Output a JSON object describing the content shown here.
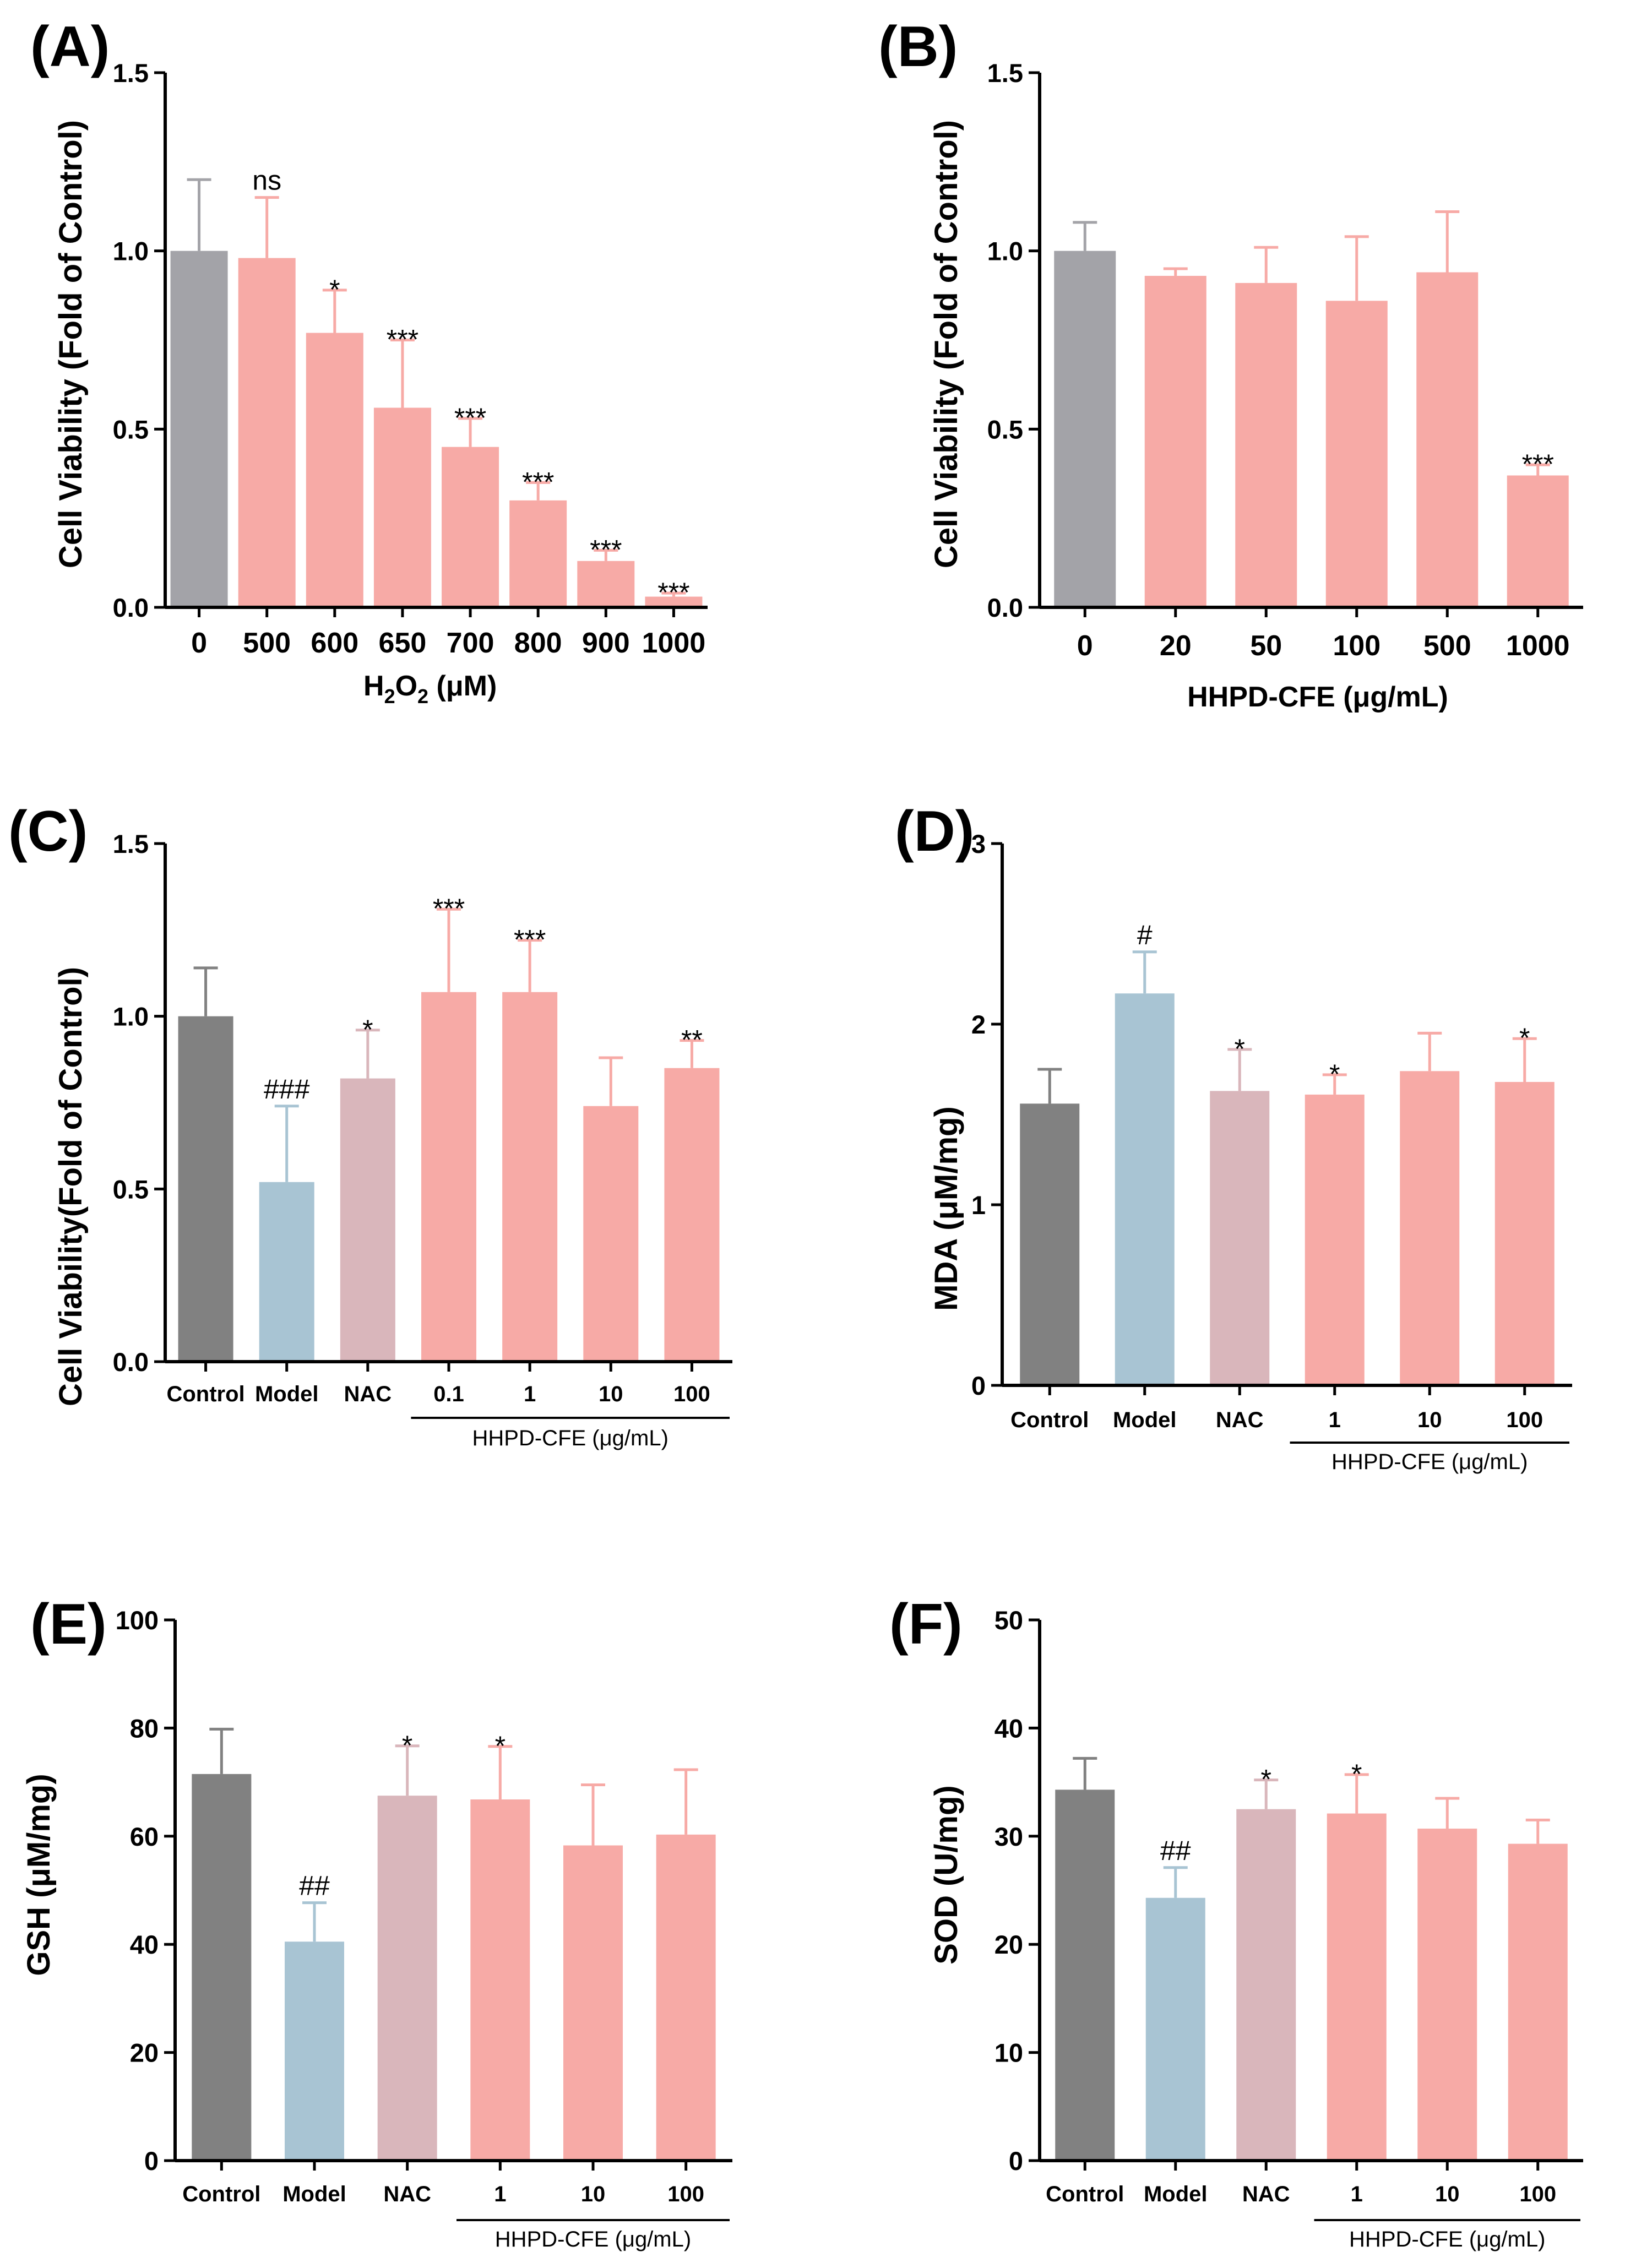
{
  "colors": {
    "gray": "#a3a3a8",
    "dark_gray": "#818181",
    "blue": "#a8c4d3",
    "mauve": "#d9b6bb",
    "pink": "#f7aaa6"
  },
  "chart_data": [
    {
      "id": "A",
      "panel_label": "(A)",
      "type": "bar",
      "ylabel": "Cell Viability (Fold of Control)",
      "xlabel_main": "H",
      "xlabel_sub": "2",
      "xlabel_main2": "O",
      "xlabel_sub2": "2",
      "xlabel_rest": " (μM)",
      "ylim": [
        0,
        1.5
      ],
      "yticks": [
        "0.0",
        "0.5",
        "1.0",
        "1.5"
      ],
      "categories": [
        "0",
        "500",
        "600",
        "650",
        "700",
        "800",
        "900",
        "1000"
      ],
      "values": [
        1.0,
        0.98,
        0.77,
        0.56,
        0.45,
        0.3,
        0.13,
        0.03
      ],
      "errors": [
        0.2,
        0.17,
        0.12,
        0.19,
        0.08,
        0.05,
        0.03,
        0.01
      ],
      "colors": [
        "gray",
        "pink",
        "pink",
        "pink",
        "pink",
        "pink",
        "pink",
        "pink"
      ],
      "annotations": [
        "",
        "ns",
        "*",
        "***",
        "***",
        "***",
        "***",
        "***"
      ]
    },
    {
      "id": "B",
      "panel_label": "(B)",
      "type": "bar",
      "ylabel": "Cell Viability (Fold of Control)",
      "xlabel": "HHPD-CFE (μg/mL)",
      "ylim": [
        0,
        1.5
      ],
      "yticks": [
        "0.0",
        "0.5",
        "1.0",
        "1.5"
      ],
      "categories": [
        "0",
        "20",
        "50",
        "100",
        "500",
        "1000"
      ],
      "values": [
        1.0,
        0.93,
        0.91,
        0.86,
        0.94,
        0.37
      ],
      "errors": [
        0.08,
        0.02,
        0.1,
        0.18,
        0.17,
        0.03
      ],
      "colors": [
        "gray",
        "pink",
        "pink",
        "pink",
        "pink",
        "pink"
      ],
      "annotations": [
        "",
        "",
        "",
        "",
        "",
        "***"
      ]
    },
    {
      "id": "C",
      "panel_label": "(C)",
      "type": "bar",
      "ylabel": "Cell Viability(Fold of Control)",
      "group_label": "HHPD-CFE (μg/mL)",
      "group_range": [
        3,
        6
      ],
      "ylim": [
        0,
        1.5
      ],
      "yticks": [
        "0.0",
        "0.5",
        "1.0",
        "1.5"
      ],
      "categories": [
        "Control",
        "Model",
        "NAC",
        "0.1",
        "1",
        "10",
        "100"
      ],
      "values": [
        1.0,
        0.52,
        0.82,
        1.07,
        1.07,
        0.74,
        0.85
      ],
      "errors": [
        0.14,
        0.22,
        0.14,
        0.24,
        0.15,
        0.14,
        0.08
      ],
      "colors": [
        "dark_gray",
        "blue",
        "mauve",
        "pink",
        "pink",
        "pink",
        "pink"
      ],
      "annotations": [
        "",
        "###",
        "*",
        "***",
        "***",
        "",
        "**"
      ]
    },
    {
      "id": "D",
      "panel_label": "(D)",
      "type": "bar",
      "ylabel": "MDA (μM/mg)",
      "group_label": "HHPD-CFE (μg/mL)",
      "group_range": [
        3,
        5
      ],
      "ylim": [
        0,
        3
      ],
      "yticks": [
        "0",
        "1",
        "2",
        "3"
      ],
      "categories": [
        "Control",
        "Model",
        "NAC",
        "1",
        "10",
        "100"
      ],
      "values": [
        1.56,
        2.17,
        1.63,
        1.61,
        1.74,
        1.68
      ],
      "errors": [
        0.19,
        0.23,
        0.23,
        0.11,
        0.21,
        0.24
      ],
      "colors": [
        "dark_gray",
        "blue",
        "mauve",
        "pink",
        "pink",
        "pink"
      ],
      "annotations": [
        "",
        "#",
        "*",
        "*",
        "",
        "*"
      ]
    },
    {
      "id": "E",
      "panel_label": "(E)",
      "type": "bar",
      "ylabel": "GSH (μM/mg)",
      "group_label": "HHPD-CFE (μg/mL)",
      "group_range": [
        3,
        5
      ],
      "ylim": [
        0,
        100
      ],
      "yticks": [
        "0",
        "20",
        "40",
        "60",
        "80",
        "100"
      ],
      "categories": [
        "Control",
        "Model",
        "NAC",
        "1",
        "10",
        "100"
      ],
      "values": [
        71.5,
        40.5,
        67.5,
        66.8,
        58.3,
        60.3
      ],
      "errors": [
        8.3,
        7.2,
        9.2,
        9.8,
        11.2,
        12.0
      ],
      "colors": [
        "dark_gray",
        "blue",
        "mauve",
        "pink",
        "pink",
        "pink"
      ],
      "annotations": [
        "",
        "##",
        "*",
        "*",
        "",
        ""
      ]
    },
    {
      "id": "F",
      "panel_label": "(F)",
      "type": "bar",
      "ylabel": "SOD (U/mg)",
      "group_label": "HHPD-CFE (μg/mL)",
      "group_range": [
        3,
        5
      ],
      "ylim": [
        0,
        50
      ],
      "yticks": [
        "0",
        "10",
        "20",
        "30",
        "40",
        "50"
      ],
      "categories": [
        "Control",
        "Model",
        "NAC",
        "1",
        "10",
        "100"
      ],
      "values": [
        34.3,
        24.3,
        32.5,
        32.1,
        30.7,
        29.3
      ],
      "errors": [
        2.9,
        2.8,
        2.7,
        3.6,
        2.8,
        2.2
      ],
      "colors": [
        "dark_gray",
        "blue",
        "mauve",
        "pink",
        "pink",
        "pink"
      ],
      "annotations": [
        "",
        "##",
        "*",
        "*",
        "",
        ""
      ]
    }
  ]
}
